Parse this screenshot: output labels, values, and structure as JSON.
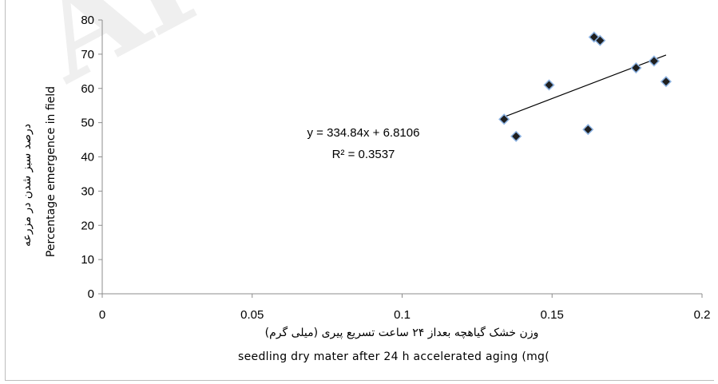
{
  "watermark": "Arc",
  "chart_data": {
    "type": "scatter",
    "title": "",
    "xlabel_fa": "وزن خشک گیاهچه بعداز ۲۴ ساعت تسریع پیری (میلی گرم)",
    "xlabel_en": "seedling dry mater after 24 h accelerated aging (mg(",
    "ylabel_fa": "درصد سبز شدن در مزرعه",
    "ylabel_en": "Percentage emergence in field",
    "xlim": [
      0,
      0.2
    ],
    "ylim": [
      0,
      80
    ],
    "xticks": [
      "0",
      "0.05",
      "0.1",
      "0.15",
      "0.2"
    ],
    "yticks": [
      "0",
      "10",
      "20",
      "30",
      "40",
      "50",
      "60",
      "70",
      "80"
    ],
    "grid": false,
    "legend": "none",
    "marker_color": "#1f1f1f",
    "marker_edge_color": "#8db3e2",
    "trendline": {
      "slope": 334.84,
      "intercept": 6.8106,
      "x_range": [
        0.134,
        0.188
      ]
    },
    "equation": "y = 334.84x + 6.8106",
    "r_squared": "R² = 0.3537",
    "points": [
      {
        "x": 0.134,
        "y": 51
      },
      {
        "x": 0.138,
        "y": 46
      },
      {
        "x": 0.149,
        "y": 61
      },
      {
        "x": 0.162,
        "y": 48
      },
      {
        "x": 0.164,
        "y": 75
      },
      {
        "x": 0.166,
        "y": 74
      },
      {
        "x": 0.178,
        "y": 66
      },
      {
        "x": 0.184,
        "y": 68
      },
      {
        "x": 0.188,
        "y": 62
      }
    ]
  }
}
